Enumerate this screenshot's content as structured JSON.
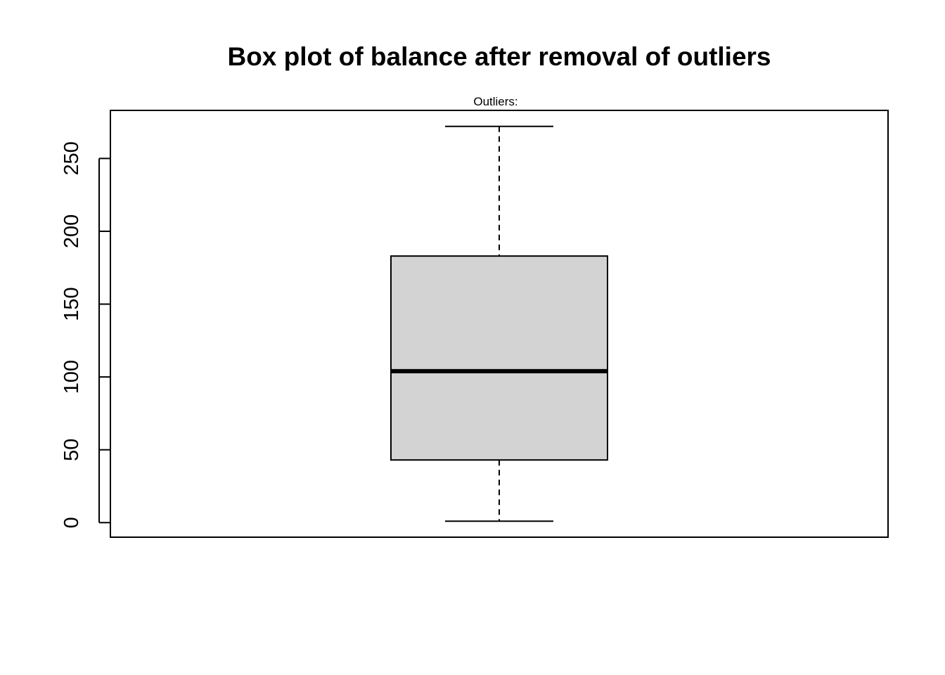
{
  "chart_data": {
    "type": "box",
    "title": "Box plot of balance after removal of outliers",
    "subtitle": "Outliers:",
    "xlabel": "",
    "ylabel": "",
    "ylim": [
      -10,
      283
    ],
    "y_ticks": [
      0,
      50,
      100,
      150,
      200,
      250
    ],
    "y_tick_labels": [
      "0",
      "50",
      "100",
      "150",
      "200",
      "250"
    ],
    "box": {
      "min": 1,
      "q1": 43,
      "median": 104,
      "q3": 183,
      "max": 272
    },
    "box_fill": "#d3d3d3",
    "grid": false
  }
}
